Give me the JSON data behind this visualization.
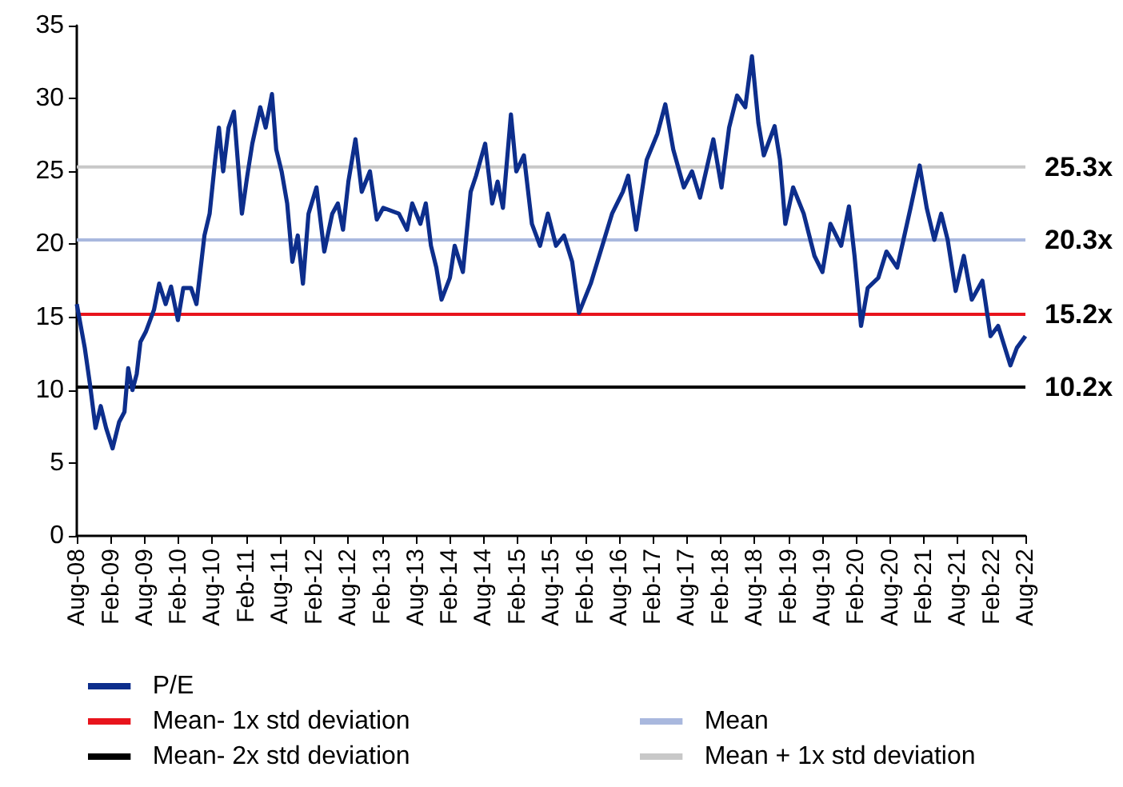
{
  "chart_data": {
    "type": "line",
    "ylim": [
      0,
      35
    ],
    "yticks": [
      0,
      5,
      10,
      15,
      20,
      25,
      30,
      35
    ],
    "xlim": [
      "2008-08-01",
      "2022-08-01"
    ],
    "xticks": [
      {
        "value": "2008-08-01",
        "label": "Aug-08"
      },
      {
        "value": "2009-02-01",
        "label": "Feb-09"
      },
      {
        "value": "2009-08-01",
        "label": "Aug-09"
      },
      {
        "value": "2010-02-01",
        "label": "Feb-10"
      },
      {
        "value": "2010-08-01",
        "label": "Aug-10"
      },
      {
        "value": "2011-02-01",
        "label": "Feb-11"
      },
      {
        "value": "2011-08-01",
        "label": "Aug-11"
      },
      {
        "value": "2012-02-01",
        "label": "Feb-12"
      },
      {
        "value": "2012-08-01",
        "label": "Aug-12"
      },
      {
        "value": "2013-02-01",
        "label": "Feb-13"
      },
      {
        "value": "2013-08-01",
        "label": "Aug-13"
      },
      {
        "value": "2014-02-01",
        "label": "Feb-14"
      },
      {
        "value": "2014-08-01",
        "label": "Aug-14"
      },
      {
        "value": "2015-02-01",
        "label": "Feb-15"
      },
      {
        "value": "2015-08-01",
        "label": "Aug-15"
      },
      {
        "value": "2016-02-01",
        "label": "Feb-16"
      },
      {
        "value": "2016-08-01",
        "label": "Aug-16"
      },
      {
        "value": "2017-02-01",
        "label": "Feb-17"
      },
      {
        "value": "2017-08-01",
        "label": "Aug-17"
      },
      {
        "value": "2018-02-01",
        "label": "Feb-18"
      },
      {
        "value": "2018-08-01",
        "label": "Aug-18"
      },
      {
        "value": "2019-02-01",
        "label": "Feb-19"
      },
      {
        "value": "2019-08-01",
        "label": "Aug-19"
      },
      {
        "value": "2020-02-01",
        "label": "Feb-20"
      },
      {
        "value": "2020-08-01",
        "label": "Aug-20"
      },
      {
        "value": "2021-02-01",
        "label": "Feb-21"
      },
      {
        "value": "2021-08-01",
        "label": "Aug-21"
      },
      {
        "value": "2022-02-01",
        "label": "Feb-22"
      },
      {
        "value": "2022-08-01",
        "label": "Aug-22"
      }
    ],
    "legend": "bottom",
    "marker": "none",
    "line_style": "solid",
    "series": [
      {
        "name": "P/E",
        "color": "#0d2e8c",
        "x": [
          "2008-08-01",
          "2008-09-13",
          "2008-10-11",
          "2008-11-10",
          "2008-12-08",
          "2009-01-06",
          "2009-02-10",
          "2009-03-17",
          "2009-04-15",
          "2009-05-05",
          "2009-05-28",
          "2009-06-20",
          "2009-07-10",
          "2009-08-08",
          "2009-09-21",
          "2009-10-19",
          "2009-11-23",
          "2009-12-22",
          "2010-01-28",
          "2010-02-26",
          "2010-04-09",
          "2010-05-08",
          "2010-06-20",
          "2010-07-18",
          "2010-08-17",
          "2010-09-06",
          "2010-09-29",
          "2010-10-28",
          "2010-11-26",
          "2011-01-08",
          "2011-02-06",
          "2011-03-05",
          "2011-04-17",
          "2011-05-16",
          "2011-06-19",
          "2011-07-12",
          "2011-08-10",
          "2011-09-09",
          "2011-10-07",
          "2011-11-05",
          "2011-12-03",
          "2012-01-02",
          "2012-02-14",
          "2012-03-27",
          "2012-05-09",
          "2012-06-08",
          "2012-07-06",
          "2012-08-04",
          "2012-09-11",
          "2012-10-15",
          "2012-11-28",
          "2013-01-04",
          "2013-02-08",
          "2013-05-03",
          "2013-06-16",
          "2013-07-14",
          "2013-08-27",
          "2013-09-25",
          "2013-10-23",
          "2013-11-21",
          "2013-12-19",
          "2014-02-02",
          "2014-02-28",
          "2014-04-13",
          "2014-05-25",
          "2014-06-23",
          "2014-08-11",
          "2014-09-18",
          "2014-10-17",
          "2014-11-15",
          "2014-12-28",
          "2015-01-26",
          "2015-03-08",
          "2015-04-20",
          "2015-06-03",
          "2015-07-15",
          "2015-08-28",
          "2015-10-10",
          "2015-11-23",
          "2015-12-30",
          "2016-03-02",
          "2016-05-13",
          "2016-06-25",
          "2016-08-22",
          "2016-09-20",
          "2016-11-02",
          "2016-12-29",
          "2017-02-25",
          "2017-04-08",
          "2017-05-21",
          "2017-07-17",
          "2017-08-30",
          "2017-10-12",
          "2017-12-23",
          "2018-02-05",
          "2018-03-18",
          "2018-04-30",
          "2018-06-13",
          "2018-07-19",
          "2018-08-23",
          "2018-09-21",
          "2018-11-18",
          "2018-12-17",
          "2019-01-15",
          "2019-02-26",
          "2019-04-24",
          "2019-06-21",
          "2019-08-03",
          "2019-09-15",
          "2019-11-12",
          "2019-12-24",
          "2020-01-23",
          "2020-02-27",
          "2020-04-03",
          "2020-05-30",
          "2020-07-13",
          "2020-09-09",
          "2020-11-20",
          "2021-01-08",
          "2021-02-15",
          "2021-03-28",
          "2021-05-04",
          "2021-06-08",
          "2021-07-21",
          "2021-09-03",
          "2021-10-16",
          "2021-12-12",
          "2022-01-25",
          "2022-03-07",
          "2022-05-12",
          "2022-06-16",
          "2022-08-01"
        ],
        "values": [
          15.9,
          12.9,
          10.4,
          7.4,
          8.9,
          7.4,
          6.0,
          7.8,
          8.5,
          11.5,
          10.0,
          11.1,
          13.3,
          14.0,
          15.5,
          17.3,
          15.9,
          17.1,
          14.8,
          17.0,
          17.0,
          15.9,
          20.6,
          22.1,
          25.8,
          28.0,
          25.0,
          28.0,
          29.1,
          22.1,
          24.7,
          26.9,
          29.4,
          28.0,
          30.3,
          26.5,
          25.0,
          22.8,
          18.8,
          20.6,
          17.3,
          22.1,
          23.9,
          19.5,
          22.1,
          22.8,
          21.0,
          24.3,
          27.2,
          23.6,
          25.0,
          21.7,
          22.5,
          22.1,
          21.0,
          22.8,
          21.4,
          22.8,
          19.9,
          18.4,
          16.2,
          17.7,
          19.9,
          18.1,
          23.6,
          24.7,
          26.9,
          22.8,
          24.3,
          22.5,
          28.9,
          25.0,
          26.1,
          21.4,
          19.9,
          22.1,
          19.9,
          20.6,
          18.8,
          15.3,
          17.3,
          20.3,
          22.1,
          23.6,
          24.7,
          21.0,
          25.8,
          27.6,
          29.6,
          26.5,
          23.9,
          25.0,
          23.2,
          27.2,
          23.9,
          28.0,
          30.2,
          29.4,
          32.9,
          28.3,
          26.1,
          28.1,
          25.8,
          21.4,
          23.9,
          22.1,
          19.2,
          18.1,
          21.4,
          19.9,
          22.6,
          19.2,
          14.4,
          17.0,
          17.7,
          19.5,
          18.4,
          22.5,
          25.4,
          22.5,
          20.3,
          22.1,
          20.3,
          16.8,
          19.2,
          16.2,
          17.5,
          13.7,
          14.4,
          11.7,
          12.9,
          13.7
        ]
      },
      {
        "name": "Mean",
        "color": "#a9b8de",
        "x": [
          "2008-08-01",
          "2022-08-01"
        ],
        "values": [
          20.3,
          20.3
        ],
        "value_labels": [
          null,
          "20.3x"
        ]
      },
      {
        "name": "Mean- 1x std deviation",
        "color": "#e8141c",
        "x": [
          "2008-08-01",
          "2022-08-01"
        ],
        "values": [
          15.2,
          15.2
        ],
        "value_labels": [
          null,
          "15.2x"
        ]
      },
      {
        "name": "Mean + 1x std deviation",
        "color": "#c8c8c8",
        "x": [
          "2008-08-01",
          "2022-08-01"
        ],
        "values": [
          25.3,
          25.3
        ],
        "value_labels": [
          null,
          "25.3x"
        ]
      },
      {
        "name": "Mean- 2x std deviation",
        "color": "#000000",
        "x": [
          "2008-08-01",
          "2022-08-01"
        ],
        "values": [
          10.2,
          10.2
        ],
        "value_labels": [
          null,
          "10.2x"
        ]
      }
    ]
  }
}
